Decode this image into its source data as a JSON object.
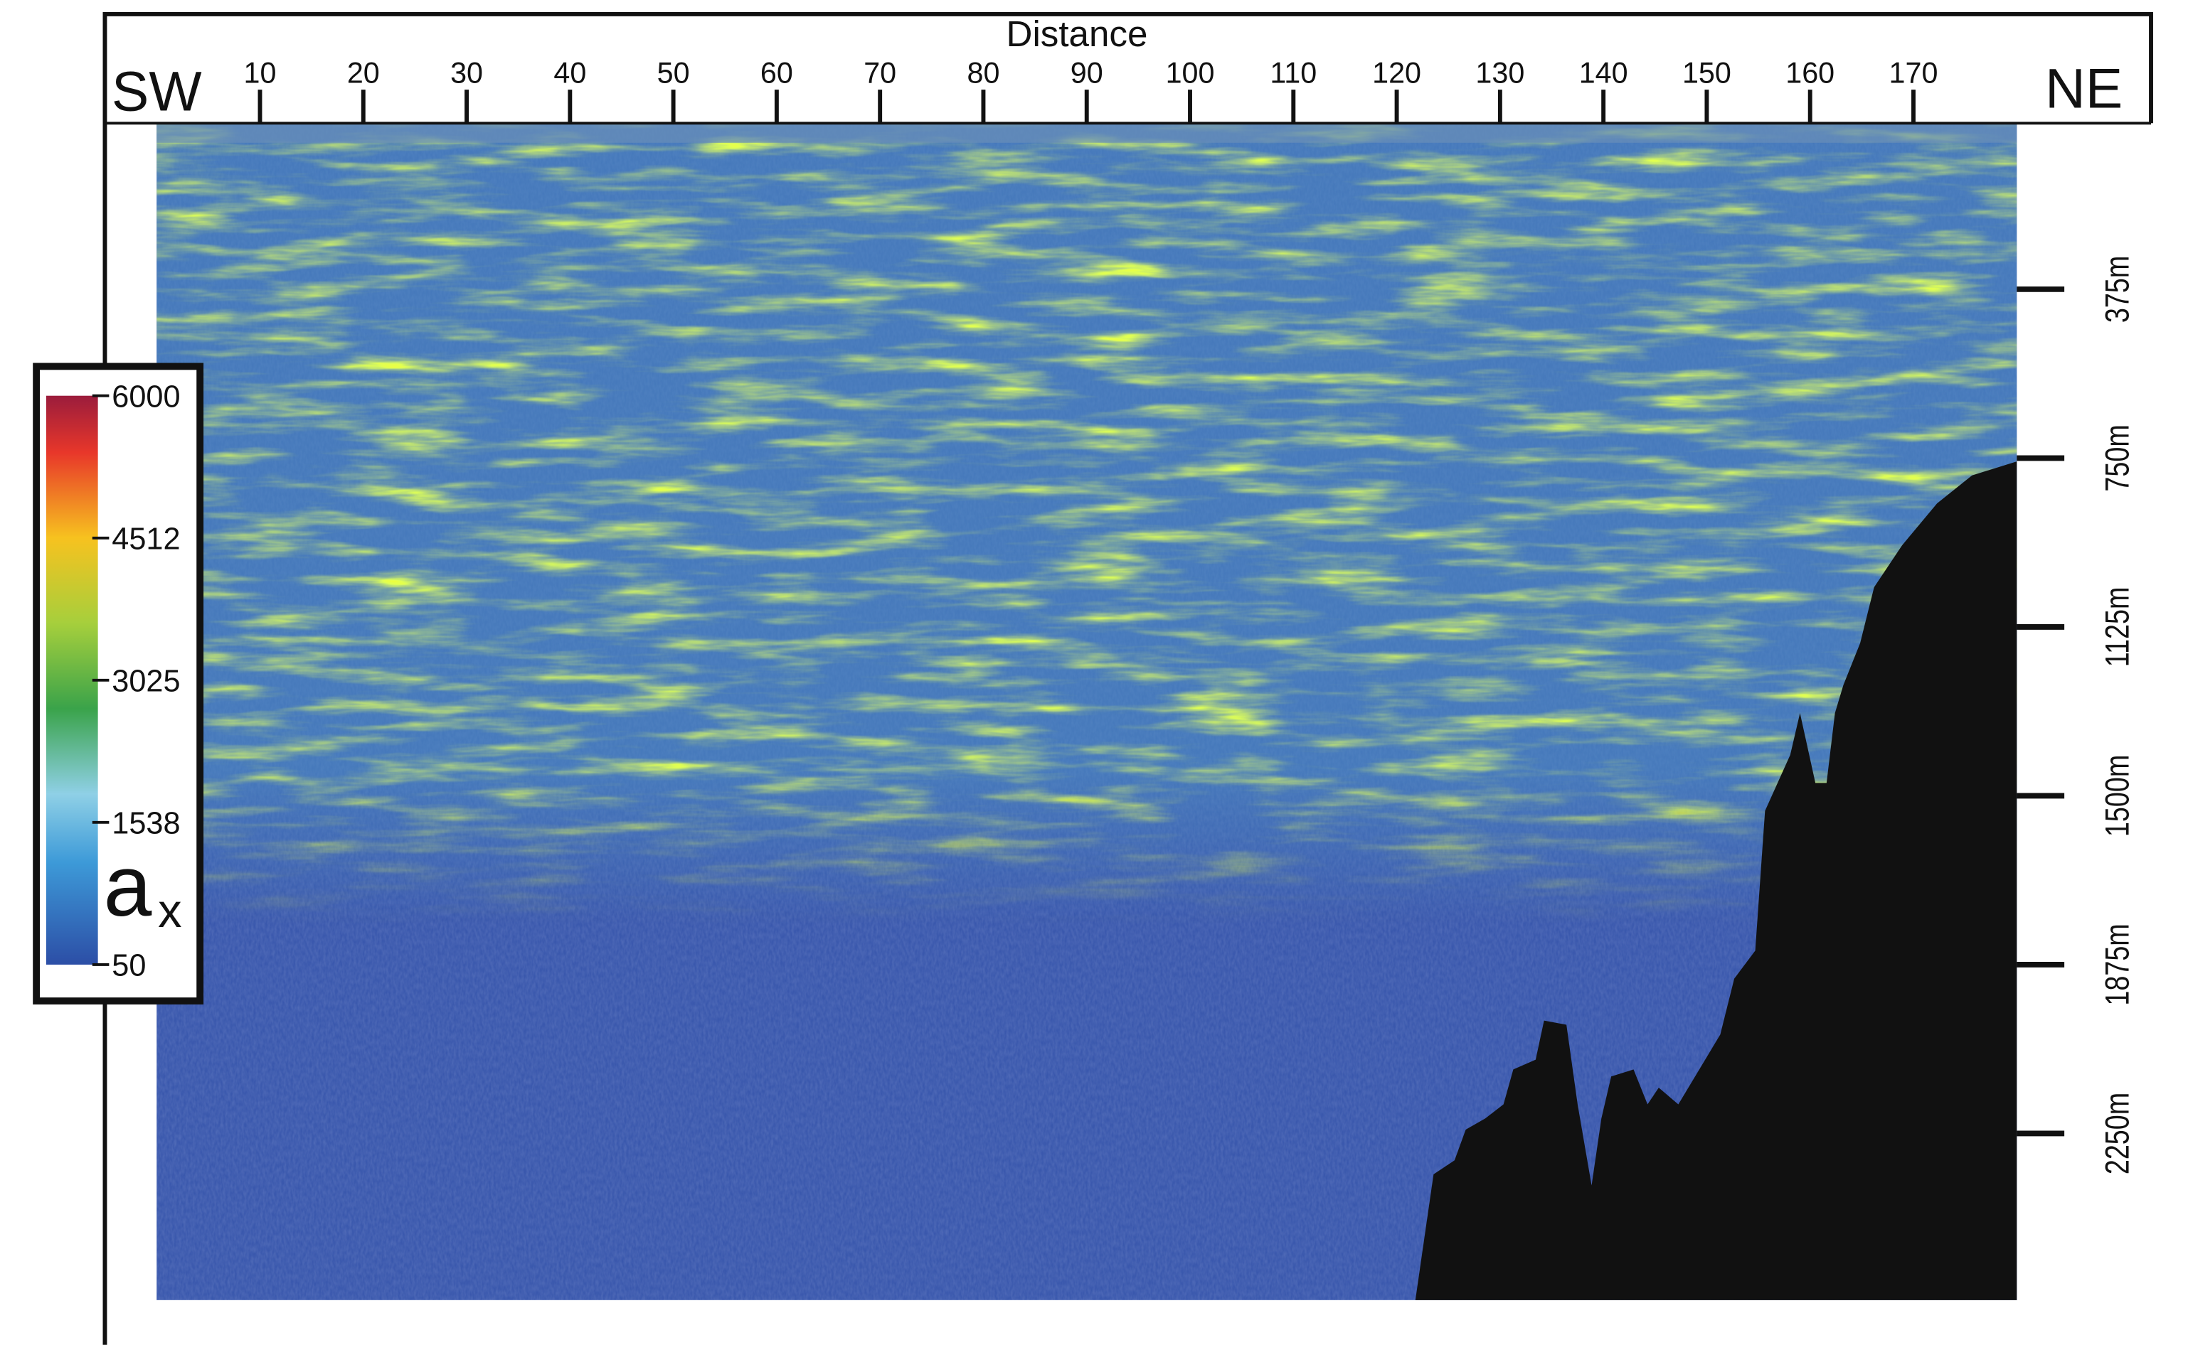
{
  "figure": {
    "x_axis_label": "Distance",
    "left_label": "SW",
    "right_label": "NE",
    "xlim": [
      0,
      180
    ],
    "xticks": [
      10,
      20,
      30,
      40,
      50,
      60,
      70,
      80,
      90,
      100,
      110,
      120,
      130,
      140,
      150,
      160,
      170
    ],
    "ylim": [
      0,
      2620
    ],
    "yticks": [
      {
        "value": 375,
        "label": "375m"
      },
      {
        "value": 750,
        "label": "750m"
      },
      {
        "value": 1125,
        "label": "1125m"
      },
      {
        "value": 1500,
        "label": "1500m"
      },
      {
        "value": 1875,
        "label": "1875m"
      },
      {
        "value": 2250,
        "label": "2250m"
      }
    ],
    "colorbar": {
      "label": "a",
      "label_subscript": "x",
      "lim": [
        50,
        6000
      ],
      "ticks": [
        6000,
        4512,
        3025,
        1538,
        50
      ]
    }
  }
}
